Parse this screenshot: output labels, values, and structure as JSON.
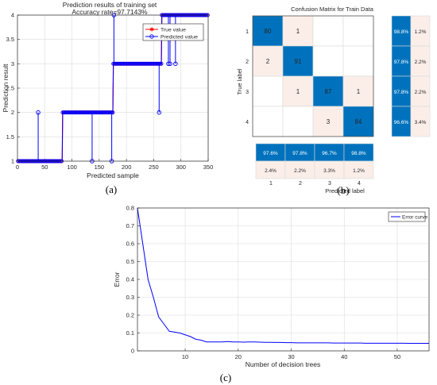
{
  "panels": {
    "a": {
      "label": "(a)"
    },
    "b": {
      "label": "(b)"
    },
    "c": {
      "label": "(c)"
    }
  },
  "chart_data": [
    {
      "id": "a",
      "type": "line",
      "title": "Prediction results of  training set",
      "subtitle": "Accuracy rate=97.7143%",
      "xlabel": "Predicted sample",
      "ylabel": "Prediction result",
      "xlim": [
        0,
        350
      ],
      "ylim": [
        1,
        4
      ],
      "xticks": [
        0,
        50,
        100,
        150,
        200,
        250,
        300,
        350
      ],
      "yticks": [
        1,
        1.5,
        2,
        2.5,
        3,
        3.5,
        4
      ],
      "grid": true,
      "legend_position": "top-right",
      "series": [
        {
          "name": "True value",
          "color": "#ff0000",
          "marker": "star",
          "segments": [
            {
              "x_start": 1,
              "x_end": 82,
              "value": 1
            },
            {
              "x_start": 83,
              "x_end": 175,
              "value": 2
            },
            {
              "x_start": 176,
              "x_end": 264,
              "value": 3
            },
            {
              "x_start": 265,
              "x_end": 350,
              "value": 4
            }
          ]
        },
        {
          "name": "Predicted value",
          "color": "#0000ff",
          "marker": "circle",
          "segments": [
            {
              "x_start": 1,
              "x_end": 82,
              "value": 1
            },
            {
              "x_start": 83,
              "x_end": 175,
              "value": 2
            },
            {
              "x_start": 176,
              "x_end": 264,
              "value": 3
            },
            {
              "x_start": 265,
              "x_end": 350,
              "value": 4
            }
          ],
          "outliers": [
            {
              "x": 38,
              "y": 2
            },
            {
              "x": 137,
              "y": 1
            },
            {
              "x": 173,
              "y": 1
            },
            {
              "x": 177,
              "y": 4
            },
            {
              "x": 260,
              "y": 2
            },
            {
              "x": 277,
              "y": 3
            },
            {
              "x": 280,
              "y": 3
            },
            {
              "x": 290,
              "y": 3
            }
          ]
        }
      ]
    },
    {
      "id": "b",
      "type": "heatmap",
      "title": "Confusion Matrix for Train Data",
      "xlabel": "Predicted label",
      "ylabel": "True label",
      "classes": [
        "1",
        "2",
        "3",
        "4"
      ],
      "matrix": [
        [
          80,
          1,
          null,
          null
        ],
        [
          2,
          91,
          null,
          null
        ],
        [
          null,
          1,
          87,
          1
        ],
        [
          null,
          null,
          3,
          84
        ]
      ],
      "row_summary": [
        [
          "98.8%",
          "1.2%"
        ],
        [
          "97.8%",
          "2.2%"
        ],
        [
          "97.8%",
          "2.2%"
        ],
        [
          "96.6%",
          "3.4%"
        ]
      ],
      "col_summary": [
        [
          "97.6%",
          "97.8%",
          "96.7%",
          "98.8%"
        ],
        [
          "2.4%",
          "2.2%",
          "3.3%",
          "1.2%"
        ]
      ],
      "colors": {
        "correct": "#0072bd",
        "error": "#fbeee9",
        "empty": "#ffffff"
      }
    },
    {
      "id": "c",
      "type": "line",
      "xlabel": "Number of decision trees",
      "ylabel": "Error",
      "xlim": [
        1,
        56
      ],
      "ylim": [
        0,
        0.8
      ],
      "xticks": [
        10,
        20,
        30,
        40,
        50
      ],
      "yticks": [
        0,
        0.1,
        0.2,
        0.3,
        0.4,
        0.5,
        0.6,
        0.7,
        0.8
      ],
      "grid": true,
      "legend_position": "top-right",
      "series": [
        {
          "name": "Error curve",
          "color": "#0000ff",
          "x": [
            1,
            2,
            3,
            4,
            5,
            6,
            7,
            8,
            9,
            10,
            11,
            12,
            13,
            14,
            15,
            16,
            17,
            18,
            19,
            20,
            21,
            22,
            23,
            24,
            25,
            26,
            27,
            28,
            29,
            30,
            31,
            32,
            33,
            34,
            35,
            36,
            37,
            38,
            39,
            40,
            41,
            42,
            43,
            44,
            45,
            46,
            47,
            48,
            49,
            50,
            51,
            52,
            53,
            54,
            55,
            56
          ],
          "y": [
            0.8,
            0.6,
            0.4,
            0.3,
            0.19,
            0.15,
            0.11,
            0.105,
            0.1,
            0.09,
            0.08,
            0.065,
            0.06,
            0.05,
            0.05,
            0.05,
            0.05,
            0.052,
            0.05,
            0.05,
            0.049,
            0.05,
            0.05,
            0.049,
            0.048,
            0.048,
            0.047,
            0.047,
            0.046,
            0.046,
            0.045,
            0.045,
            0.045,
            0.045,
            0.045,
            0.045,
            0.045,
            0.044,
            0.044,
            0.044,
            0.044,
            0.044,
            0.044,
            0.043,
            0.043,
            0.043,
            0.043,
            0.043,
            0.043,
            0.043,
            0.043,
            0.042,
            0.042,
            0.042,
            0.042,
            0.042
          ]
        }
      ]
    }
  ]
}
